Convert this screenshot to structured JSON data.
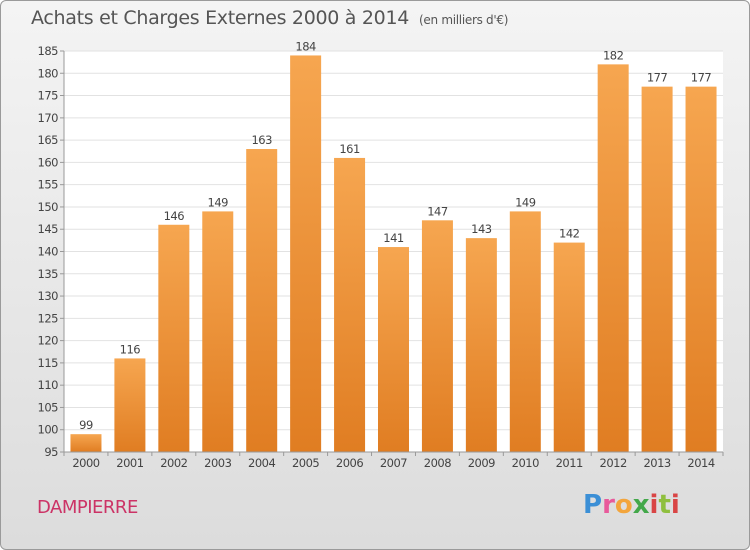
{
  "title": "Achats et Charges Externes 2000 à 2014",
  "unit": "(en milliers d'€)",
  "commune": "DAMPIERRE",
  "logo": {
    "p": "P",
    "r": "r",
    "o": "o",
    "x": "x",
    "i": "i",
    "t": "t",
    "i2": "i"
  },
  "colors": {
    "bar_top": "#f6a650",
    "bar_bottom": "#e07d22",
    "title": "#555555",
    "commune": "#cc3366"
  },
  "chart_data": {
    "type": "bar",
    "title": "Achats et Charges Externes 2000 à 2014",
    "subtitle": "(en milliers d'€)",
    "categories": [
      "2000",
      "2001",
      "2002",
      "2003",
      "2004",
      "2005",
      "2006",
      "2007",
      "2008",
      "2009",
      "2010",
      "2011",
      "2012",
      "2013",
      "2014"
    ],
    "values": [
      99,
      116,
      146,
      149,
      163,
      184,
      161,
      141,
      147,
      143,
      149,
      142,
      182,
      177,
      177
    ],
    "ylim": [
      95,
      185
    ],
    "yticks": [
      95,
      100,
      105,
      110,
      115,
      120,
      125,
      130,
      135,
      140,
      145,
      150,
      155,
      160,
      165,
      170,
      175,
      180,
      185
    ],
    "grid": true,
    "xlabel": "",
    "ylabel": ""
  }
}
